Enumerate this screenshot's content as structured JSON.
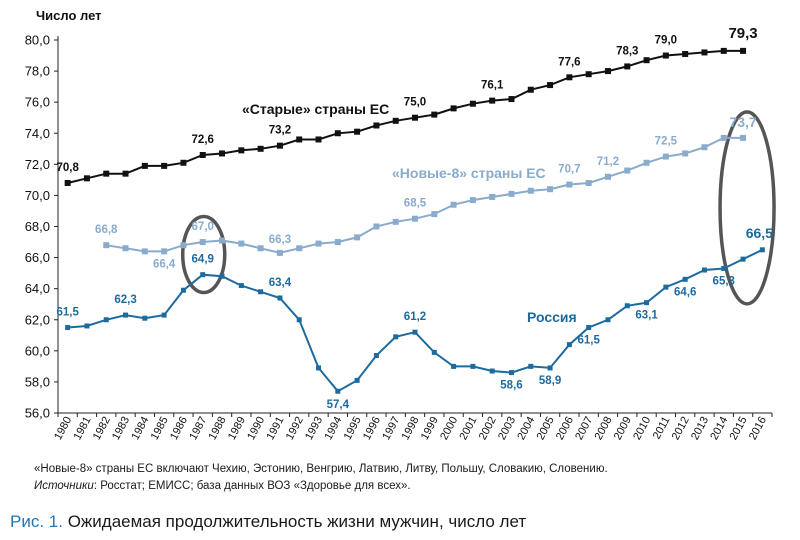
{
  "chart_data": {
    "type": "line",
    "ylabel": "Число лет",
    "ylim": [
      56,
      80
    ],
    "yticks": [
      "56,0",
      "58,0",
      "60,0",
      "62,0",
      "64,0",
      "66,0",
      "68,0",
      "70,0",
      "72,0",
      "74,0",
      "76,0",
      "78,0",
      "80,0"
    ],
    "categories": [
      "1980",
      "1981",
      "1982",
      "1983",
      "1984",
      "1985",
      "1986",
      "1987",
      "1988",
      "1989",
      "1990",
      "1991",
      "1992",
      "1993",
      "1994",
      "1995",
      "1996",
      "1997",
      "1998",
      "1999",
      "2000",
      "2001",
      "2002",
      "2003",
      "2004",
      "2005",
      "2006",
      "2007",
      "2008",
      "2009",
      "2010",
      "2011",
      "2012",
      "2013",
      "2014",
      "2015",
      "2016"
    ],
    "series": [
      {
        "name": "«Старые» страны ЕС",
        "color": "#111111",
        "values": [
          70.8,
          71.1,
          71.4,
          71.4,
          71.9,
          71.9,
          72.1,
          72.6,
          72.7,
          72.9,
          73.0,
          73.2,
          73.6,
          73.6,
          74.0,
          74.1,
          74.5,
          74.8,
          75.0,
          75.2,
          75.6,
          75.9,
          76.1,
          76.2,
          76.8,
          77.1,
          77.6,
          77.8,
          78.0,
          78.3,
          78.7,
          79.0,
          79.1,
          79.2,
          79.3,
          79.3,
          null
        ],
        "labels": [
          [
            "1980",
            "70,8"
          ],
          [
            "1987",
            "72,6"
          ],
          [
            "1991",
            "73,2"
          ],
          [
            "1998",
            "75,0"
          ],
          [
            "2002",
            "76,1"
          ],
          [
            "2006",
            "77,6"
          ],
          [
            "2009",
            "78,3"
          ],
          [
            "2011",
            "79,0"
          ],
          [
            "2015",
            "79,3"
          ]
        ]
      },
      {
        "name": "«Новые-8» страны ЕС",
        "color": "#8aabcc",
        "values": [
          null,
          null,
          66.8,
          66.6,
          66.4,
          66.4,
          66.8,
          67.0,
          67.1,
          66.9,
          66.6,
          66.3,
          66.6,
          66.9,
          67.0,
          67.3,
          68.0,
          68.3,
          68.5,
          68.8,
          69.4,
          69.7,
          69.9,
          70.1,
          70.3,
          70.4,
          70.7,
          70.8,
          71.2,
          71.6,
          72.1,
          72.5,
          72.7,
          73.1,
          73.7,
          73.7,
          null
        ],
        "labels": [
          [
            "1982",
            "66,8"
          ],
          [
            "1985",
            "66,4"
          ],
          [
            "1987",
            "67,0"
          ],
          [
            "1991",
            "66,3"
          ],
          [
            "1998",
            "68,5"
          ],
          [
            "2006",
            "70,7"
          ],
          [
            "2008",
            "71,2"
          ],
          [
            "2011",
            "72,5"
          ],
          [
            "2015",
            "73,7"
          ]
        ]
      },
      {
        "name": "Россия",
        "color": "#1d6a9e",
        "values": [
          61.5,
          61.6,
          62.0,
          62.3,
          62.1,
          62.3,
          63.9,
          64.9,
          64.8,
          64.2,
          63.8,
          63.4,
          62.0,
          58.9,
          57.4,
          58.1,
          59.7,
          60.9,
          61.2,
          59.9,
          59.0,
          59.0,
          58.7,
          58.6,
          59.0,
          58.9,
          60.4,
          61.5,
          62.0,
          62.9,
          63.1,
          64.1,
          64.6,
          65.2,
          65.3,
          65.9,
          66.5
        ],
        "labels": [
          [
            "1980",
            "61,5"
          ],
          [
            "1983",
            "62,3"
          ],
          [
            "1987",
            "64,9"
          ],
          [
            "1991",
            "63,4"
          ],
          [
            "1994",
            "57,4"
          ],
          [
            "1998",
            "61,2"
          ],
          [
            "2003",
            "58,6"
          ],
          [
            "2005",
            "58,9"
          ],
          [
            "2007",
            "61,5"
          ],
          [
            "2010",
            "63,1"
          ],
          [
            "2012",
            "64,6"
          ],
          [
            "2014",
            "65,3"
          ],
          [
            "2016",
            "66,5"
          ]
        ]
      }
    ]
  },
  "notes": {
    "line1": "«Новые-8» страны ЕС включают Чехию, Эстонию, Венгрию, Латвию, Литву, Польшу, Словакию, Словению.",
    "sources_label": "Источники",
    "sources_text": ": Росстат; ЕМИСС; база данных ВОЗ «Здоровье для всех»."
  },
  "caption": {
    "fig": "Рис. 1.",
    "text": " Ожидаемая продолжительность жизни мужчин, число лет"
  }
}
